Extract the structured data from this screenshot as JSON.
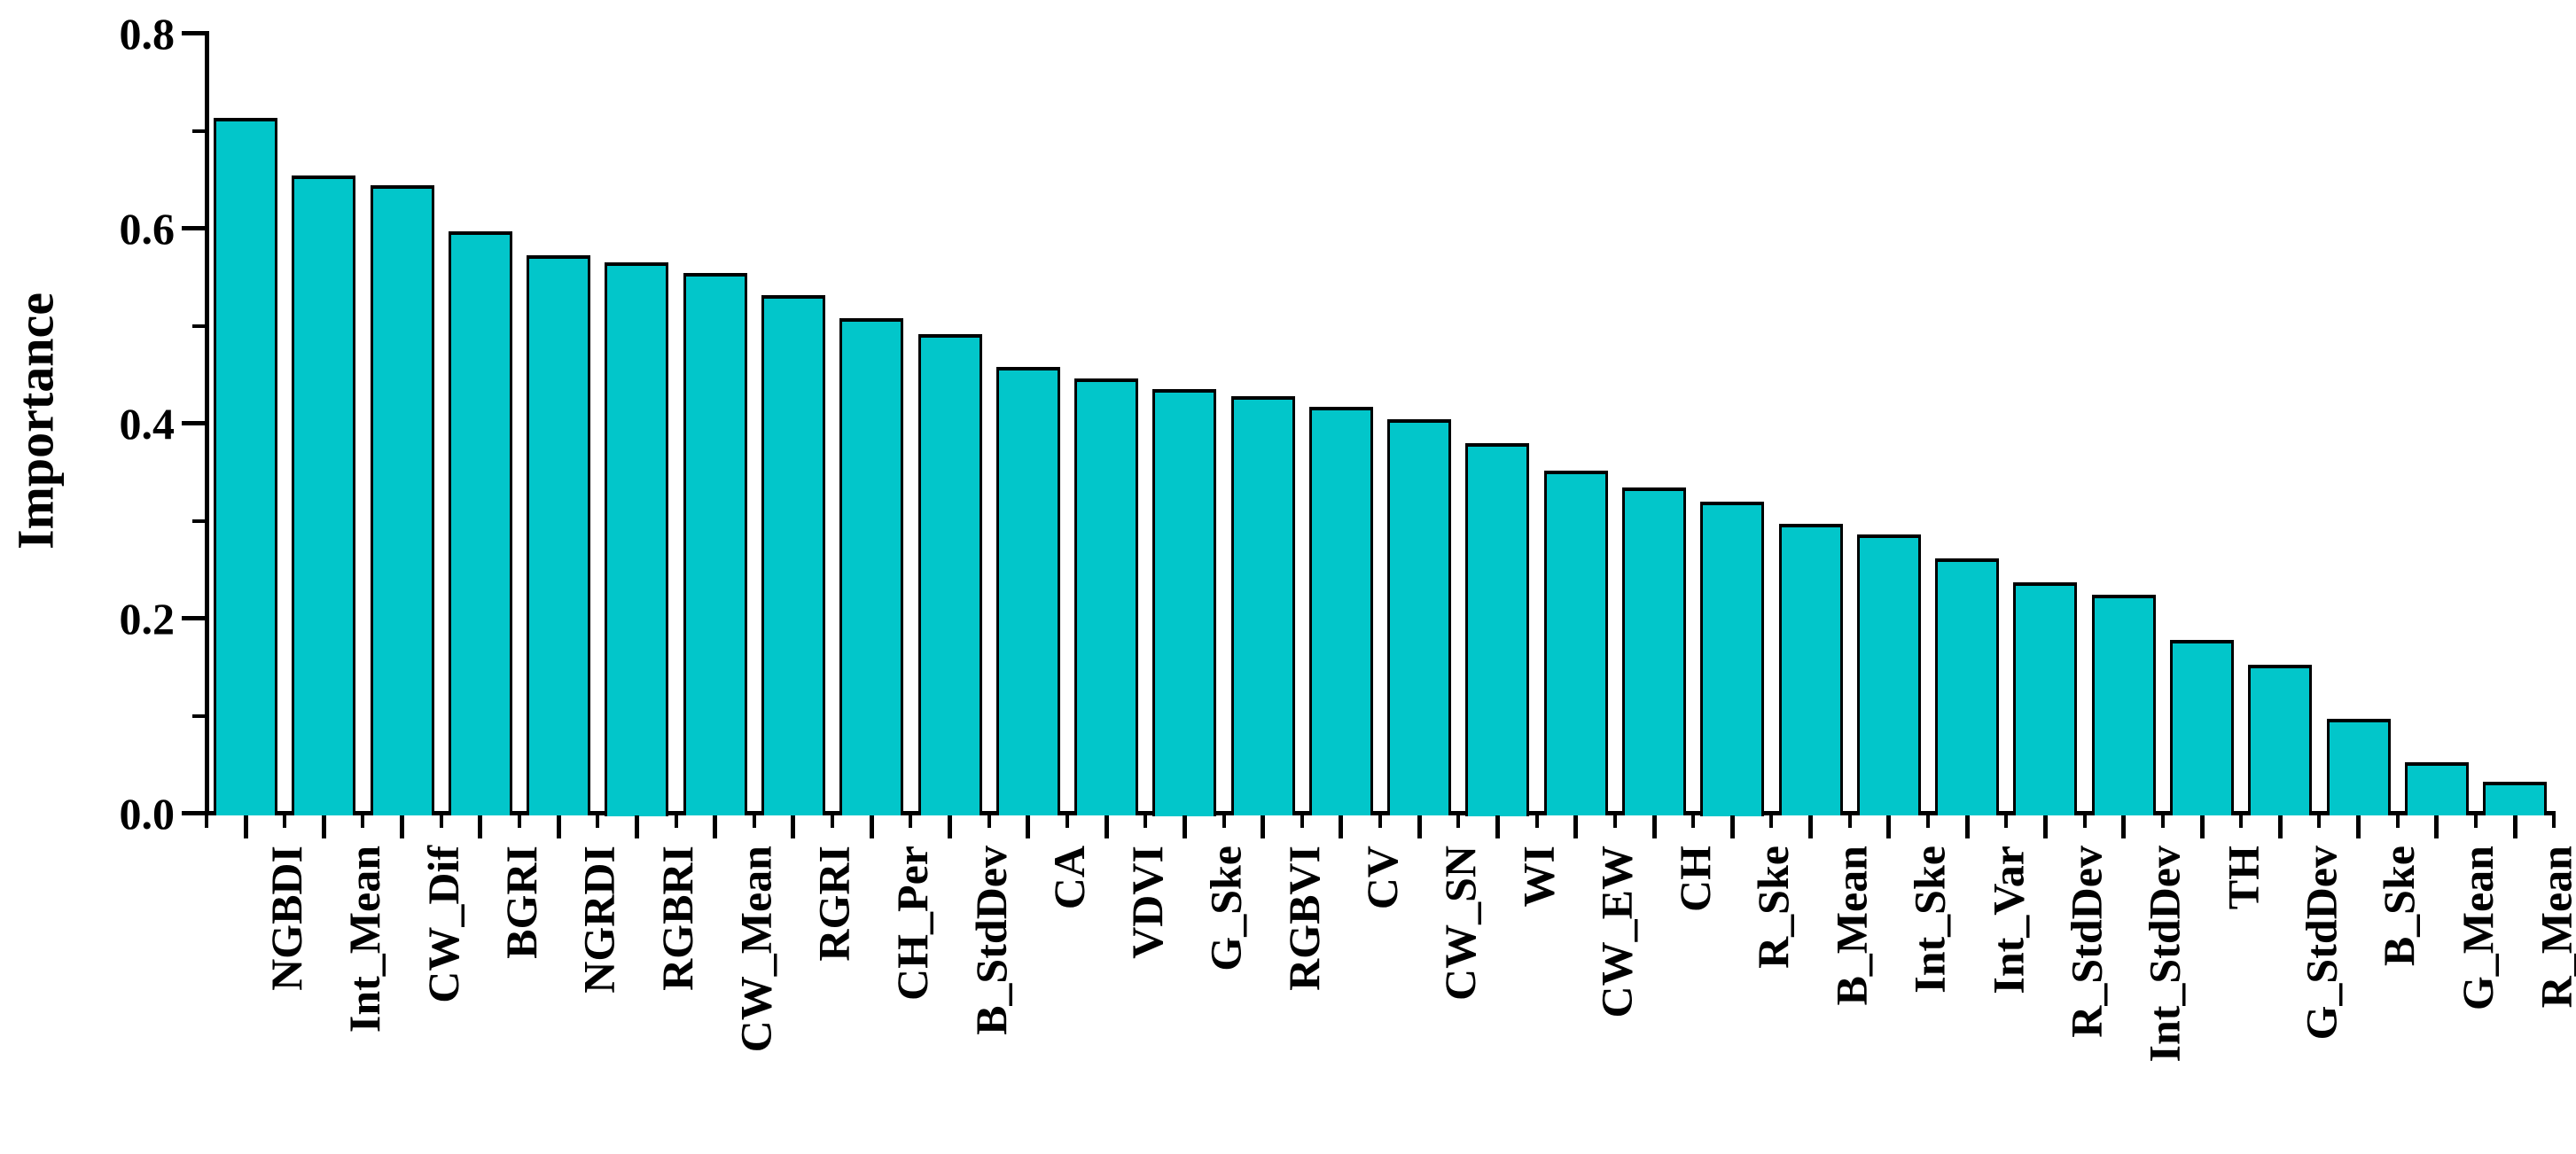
{
  "chart_data": {
    "type": "bar",
    "title": "",
    "xlabel": "",
    "ylabel": "Importance",
    "ylim": [
      0.0,
      0.8
    ],
    "grid": false,
    "legend": "none",
    "bar_color": "#02c6ca",
    "bar_edge_color": "#000000",
    "yticks_major": [
      0.0,
      0.2,
      0.4,
      0.6,
      0.8
    ],
    "ytick_labels": [
      "0.0",
      "0.2",
      "0.4",
      "0.6",
      "0.8"
    ],
    "yticks_minor": [
      0.1,
      0.3,
      0.5,
      0.7
    ],
    "categories": [
      "NGBDI",
      "Int_Mean",
      "CW_Dif",
      "BGRI",
      "NGRDI",
      "RGBRI",
      "CW_Mean",
      "RGRI",
      "CH_Per",
      "B_StdDev",
      "CA",
      "VDVI",
      "G_Ske",
      "RGBVI",
      "CV",
      "CW_SN",
      "WI",
      "CW_EW",
      "CH",
      "R_Ske",
      "B_Mean",
      "Int_Ske",
      "Int_Var",
      "R_StdDev",
      "Int_StdDev",
      "TH",
      "G_StdDev",
      "B_Ske",
      "G_Mean",
      "R_Mean"
    ],
    "values": [
      0.713,
      0.654,
      0.644,
      0.597,
      0.572,
      0.565,
      0.554,
      0.531,
      0.508,
      0.491,
      0.458,
      0.446,
      0.435,
      0.428,
      0.417,
      0.404,
      0.38,
      0.351,
      0.334,
      0.32,
      0.297,
      0.286,
      0.261,
      0.237,
      0.224,
      0.178,
      0.152,
      0.097,
      0.052,
      0.032
    ]
  }
}
